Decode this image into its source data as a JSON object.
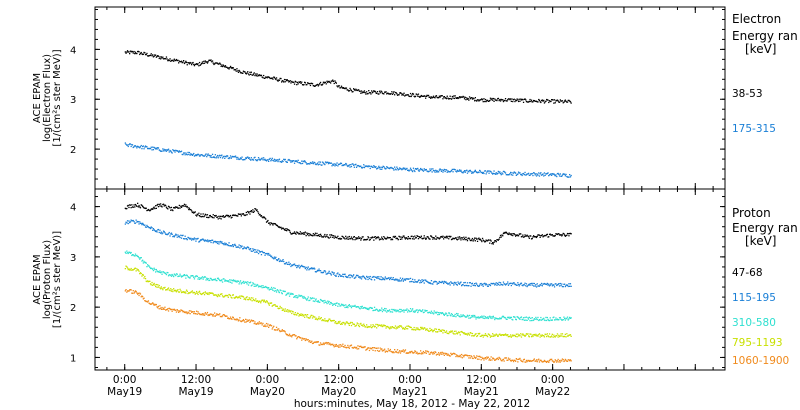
{
  "chart_data": [
    {
      "type": "scatter",
      "panel": "electron",
      "ylabel": [
        "ACE EPAM",
        "log(Electron Flux)",
        "[1/(cm²s ster MeV)]"
      ],
      "ylim": [
        1.2,
        4.85
      ],
      "yticks": [
        2,
        3,
        4
      ],
      "legend_title": [
        "Electron",
        "Energy ran",
        "[keV]"
      ],
      "series": [
        {
          "name": "38-53",
          "color": "#000000",
          "x": [
            0,
            2,
            6,
            12,
            14,
            20,
            24,
            28,
            32,
            35,
            36,
            40,
            44,
            48,
            52,
            56,
            60,
            64,
            68,
            72,
            75
          ],
          "y": [
            3.95,
            3.95,
            3.85,
            3.7,
            3.78,
            3.55,
            3.45,
            3.35,
            3.3,
            3.38,
            3.25,
            3.15,
            3.15,
            3.1,
            3.05,
            3.05,
            3.0,
            3.0,
            2.98,
            2.97,
            2.96
          ]
        },
        {
          "name": "175-315",
          "color": "#1a7fd6",
          "x": [
            0,
            6,
            12,
            18,
            24,
            30,
            36,
            42,
            48,
            54,
            60,
            66,
            72,
            75
          ],
          "y": [
            2.1,
            2.0,
            1.9,
            1.85,
            1.8,
            1.75,
            1.7,
            1.65,
            1.6,
            1.58,
            1.55,
            1.52,
            1.5,
            1.48
          ]
        }
      ]
    },
    {
      "type": "scatter",
      "panel": "proton",
      "ylabel": [
        "ACE EPAM",
        "log(Proton Flux)",
        "[1/(cm²s ster MeV)]"
      ],
      "ylim": [
        0.75,
        4.35
      ],
      "yticks": [
        1,
        2,
        3,
        4
      ],
      "legend_title": [
        "Proton",
        "Energy ran",
        "[keV]"
      ],
      "series": [
        {
          "name": "47-68",
          "color": "#000000",
          "x": [
            0,
            2,
            4,
            6,
            8,
            10,
            12,
            16,
            20,
            22,
            24,
            28,
            32,
            36,
            40,
            44,
            48,
            52,
            56,
            60,
            62,
            64,
            68,
            72,
            75
          ],
          "y": [
            4.0,
            4.05,
            3.95,
            4.05,
            3.95,
            4.05,
            3.85,
            3.8,
            3.85,
            3.95,
            3.7,
            3.5,
            3.45,
            3.4,
            3.38,
            3.38,
            3.4,
            3.4,
            3.38,
            3.35,
            3.3,
            3.5,
            3.4,
            3.45,
            3.45
          ]
        },
        {
          "name": "115-195",
          "color": "#1a7fd6",
          "x": [
            0,
            2,
            4,
            6,
            8,
            10,
            12,
            16,
            20,
            24,
            28,
            32,
            36,
            40,
            44,
            48,
            52,
            56,
            60,
            64,
            68,
            72,
            75
          ],
          "y": [
            3.7,
            3.72,
            3.6,
            3.5,
            3.45,
            3.4,
            3.35,
            3.3,
            3.2,
            3.05,
            2.85,
            2.75,
            2.65,
            2.6,
            2.58,
            2.55,
            2.5,
            2.48,
            2.45,
            2.48,
            2.45,
            2.45,
            2.45
          ]
        },
        {
          "name": "310-580",
          "color": "#2ee0d0",
          "x": [
            0,
            2,
            4,
            6,
            8,
            12,
            16,
            20,
            24,
            28,
            32,
            36,
            40,
            44,
            48,
            52,
            56,
            60,
            64,
            68,
            72,
            75
          ],
          "y": [
            3.1,
            3.05,
            2.8,
            2.7,
            2.65,
            2.6,
            2.55,
            2.5,
            2.4,
            2.25,
            2.15,
            2.05,
            2.0,
            1.95,
            1.95,
            1.9,
            1.85,
            1.8,
            1.8,
            1.78,
            1.78,
            1.78
          ]
        },
        {
          "name": "795-1193",
          "color": "#c8e000",
          "x": [
            0,
            2,
            4,
            6,
            8,
            12,
            16,
            20,
            24,
            28,
            32,
            36,
            40,
            44,
            48,
            52,
            56,
            60,
            64,
            68,
            72,
            75
          ],
          "y": [
            2.8,
            2.75,
            2.5,
            2.4,
            2.35,
            2.3,
            2.25,
            2.2,
            2.1,
            1.9,
            1.8,
            1.7,
            1.65,
            1.62,
            1.6,
            1.55,
            1.5,
            1.45,
            1.45,
            1.45,
            1.45,
            1.45
          ]
        },
        {
          "name": "1060-1900",
          "color": "#f08a1c",
          "x": [
            0,
            2,
            4,
            6,
            8,
            12,
            16,
            20,
            24,
            28,
            32,
            36,
            40,
            44,
            48,
            52,
            56,
            60,
            64,
            68,
            72,
            75
          ],
          "y": [
            2.35,
            2.3,
            2.1,
            2.0,
            1.95,
            1.9,
            1.85,
            1.75,
            1.65,
            1.45,
            1.3,
            1.25,
            1.2,
            1.15,
            1.12,
            1.1,
            1.05,
            1.0,
            0.97,
            0.95,
            0.95,
            0.95
          ]
        }
      ]
    }
  ],
  "x_axis": {
    "xlim": [
      -5,
      101
    ],
    "tick_hours": [
      0,
      12,
      24,
      36,
      48,
      60,
      72,
      84,
      96
    ],
    "tick_labels": [
      [
        "0:00",
        "May19"
      ],
      [
        "12:00",
        "May19"
      ],
      [
        "0:00",
        "May20"
      ],
      [
        "12:00",
        "May20"
      ],
      [
        "0:00",
        "May21"
      ],
      [
        "12:00",
        "May21"
      ],
      [
        "0:00",
        "May22"
      ]
    ],
    "labeled_hours": [
      0,
      12,
      24,
      36,
      48,
      60,
      72
    ],
    "title": "hours:minutes, May 18, 2012 - May 22, 2012"
  }
}
